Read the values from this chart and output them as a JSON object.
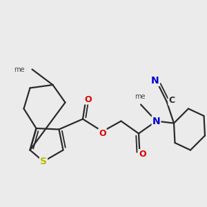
{
  "bg_color": "#ebebeb",
  "bond_color": "#2a2a2a",
  "bond_width": 1.6,
  "atom_colors": {
    "N": "#0000cc",
    "O": "#dd0000",
    "S": "#bbbb00",
    "C": "#2a2a2a",
    "N_nitrile": "#0000cc"
  },
  "figsize": [
    3.0,
    3.0
  ],
  "dpi": 100
}
